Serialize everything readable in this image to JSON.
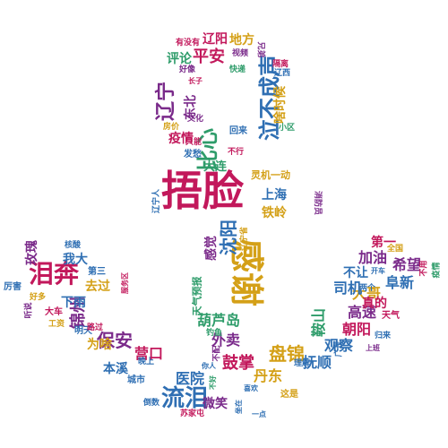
{
  "words": [
    {
      "text": "捂脸",
      "color": "#c2185b"
    },
    {
      "text": "感谢",
      "color": "#d4a017"
    },
    {
      "text": "泪奔",
      "color": "#c2185b"
    },
    {
      "text": "比心",
      "color": "#2e9c6a"
    },
    {
      "text": "泣不成声",
      "color": "#2f6fb3"
    },
    {
      "text": "流泪",
      "color": "#2f6fb3"
    },
    {
      "text": "辽宁",
      "color": "#7a2a8a"
    },
    {
      "text": "锦州",
      "color": "#7a2a8a"
    },
    {
      "text": "盘锦",
      "color": "#d4a017"
    },
    {
      "text": "沈阳",
      "color": "#2f6fb3"
    },
    {
      "text": "葫芦岛",
      "color": "#2e9c6a"
    },
    {
      "text": "鼓掌",
      "color": "#c2185b"
    },
    {
      "text": "保安",
      "color": "#7a2a8a"
    },
    {
      "text": "鞍山",
      "color": "#2e9c6a"
    },
    {
      "text": "平安",
      "color": "#c2185b"
    },
    {
      "text": "外卖",
      "color": "#7a2a8a"
    },
    {
      "text": "大哥",
      "color": "#d4a017"
    },
    {
      "text": "朝阳",
      "color": "#c2185b"
    },
    {
      "text": "高速",
      "color": "#7a2a8a"
    },
    {
      "text": "阜新",
      "color": "#2f6fb3"
    },
    {
      "text": "希望",
      "color": "#7a2a8a"
    },
    {
      "text": "加油",
      "color": "#7a2a8a"
    },
    {
      "text": "司机",
      "color": "#2f6fb3"
    },
    {
      "text": "营口",
      "color": "#c2185b"
    },
    {
      "text": "医院",
      "color": "#2f6fb3"
    },
    {
      "text": "丹东",
      "color": "#d4a017"
    },
    {
      "text": "抚顺",
      "color": "#2f6fb3"
    },
    {
      "text": "观察",
      "color": "#2f6fb3"
    },
    {
      "text": "上海",
      "color": "#2f6fb3"
    },
    {
      "text": "铁岭",
      "color": "#d4a017"
    },
    {
      "text": "疫情",
      "color": "#c2185b"
    },
    {
      "text": "啥时候",
      "color": "#d4a017"
    },
    {
      "text": "地方",
      "color": "#d4a017"
    },
    {
      "text": "评论",
      "color": "#2e9c6a"
    },
    {
      "text": "辽阳",
      "color": "#c2185b"
    },
    {
      "text": "东北",
      "color": "#7a2a8a"
    },
    {
      "text": "玫瑰",
      "color": "#7a2a8a"
    },
    {
      "text": "我大",
      "color": "#2f6fb3"
    },
    {
      "text": "去过",
      "color": "#d4a017"
    },
    {
      "text": "下雨",
      "color": "#2f6fb3"
    },
    {
      "text": "本溪",
      "color": "#2f6fb3"
    },
    {
      "text": "为啥",
      "color": "#d4a017"
    },
    {
      "text": "微笑",
      "color": "#7a2a8a"
    },
    {
      "text": "真的",
      "color": "#c2185b"
    },
    {
      "text": "第一",
      "color": "#c2185b"
    },
    {
      "text": "不让",
      "color": "#2f6fb3"
    },
    {
      "text": "感觉",
      "color": "#7a2a8a"
    },
    {
      "text": "天气预报",
      "color": "#2e9c6a"
    },
    {
      "text": "灵机一动",
      "color": "#d4a017"
    },
    {
      "text": "大连",
      "color": "#2e9c6a"
    },
    {
      "text": "回来",
      "color": "#2f6fb3"
    },
    {
      "text": "发愁",
      "color": "#2f6fb3"
    },
    {
      "text": "厉害",
      "color": "#2f6fb3"
    },
    {
      "text": "第三",
      "color": "#2f6fb3"
    },
    {
      "text": "明天",
      "color": "#2f6fb3"
    },
    {
      "text": "城市",
      "color": "#2f6fb3"
    },
    {
      "text": "倒数",
      "color": "#2f6fb3"
    },
    {
      "text": "苏家屯",
      "color": "#c2185b"
    },
    {
      "text": "这是",
      "color": "#d4a017"
    },
    {
      "text": "理解",
      "color": "#2f6fb3"
    },
    {
      "text": "广东",
      "color": "#2f6fb3"
    },
    {
      "text": "天气",
      "color": "#c2185b"
    },
    {
      "text": "大车",
      "color": "#c2185b"
    },
    {
      "text": "工资",
      "color": "#d4a017"
    },
    {
      "text": "核酸",
      "color": "#2f6fb3"
    },
    {
      "text": "有没有",
      "color": "#c2185b"
    },
    {
      "text": "视频",
      "color": "#7a2a8a"
    },
    {
      "text": "兄弟",
      "color": "#7a2a8a"
    },
    {
      "text": "好像",
      "color": "#7a2a8a"
    },
    {
      "text": "快递",
      "color": "#2e9c6a"
    },
    {
      "text": "隔离",
      "color": "#c2185b"
    },
    {
      "text": "辽西",
      "color": "#2f6fb3"
    },
    {
      "text": "长子",
      "color": "#c2185b"
    },
    {
      "text": "文化",
      "color": "#7a2a8a"
    },
    {
      "text": "房价",
      "color": "#d4a017"
    },
    {
      "text": "小区",
      "color": "#2e9c6a"
    },
    {
      "text": "不行",
      "color": "#c2185b"
    },
    {
      "text": "只能",
      "color": "#c2185b"
    },
    {
      "text": "辽宁人",
      "color": "#2f6fb3"
    },
    {
      "text": "消防员",
      "color": "#7a2a8a"
    },
    {
      "text": "辽宁省",
      "color": "#d4a017"
    },
    {
      "text": "全国",
      "color": "#d4a017"
    },
    {
      "text": "开车",
      "color": "#2f6fb3"
    },
    {
      "text": "两个",
      "color": "#2f6fb3"
    },
    {
      "text": "不用",
      "color": "#c2185b"
    },
    {
      "text": "疫情",
      "color": "#2e9c6a"
    },
    {
      "text": "归来",
      "color": "#2f6fb3"
    },
    {
      "text": "上班",
      "color": "#7a2a8a"
    },
    {
      "text": "好多",
      "color": "#d4a017"
    },
    {
      "text": "听说",
      "color": "#7a2a8a"
    },
    {
      "text": "路过",
      "color": "#c2185b"
    },
    {
      "text": "钓鱼",
      "color": "#2e9c6a"
    },
    {
      "text": "晚上",
      "color": "#2f6fb3"
    },
    {
      "text": "不配",
      "color": "#7a2a8a"
    },
    {
      "text": "你人",
      "color": "#2f6fb3"
    },
    {
      "text": "不好",
      "color": "#2e9c6a"
    },
    {
      "text": "喜欢",
      "color": "#2f6fb3"
    },
    {
      "text": "坐在",
      "color": "#2f6fb3"
    },
    {
      "text": "一点",
      "color": "#2f6fb3"
    },
    {
      "text": "服务区",
      "color": "#c2185b"
    }
  ]
}
